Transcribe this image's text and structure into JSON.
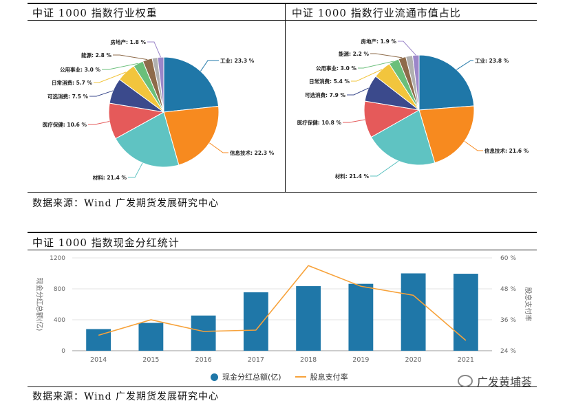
{
  "pie_left": {
    "title": "中证 1000 指数行业权重"
  },
  "pie_right": {
    "title": "中证 1000 指数行业流通市值占比"
  },
  "source_top": "数据来源：Wind  广发期货发展研究中心",
  "bar_chart": {
    "title": "中证 1000 指数现金分红统计",
    "legend_bar": "现金分红总额(亿)",
    "legend_line": "股息支付率"
  },
  "source_bottom": "数据来源：Wind  广发期货发展研究中心",
  "watermark": "广发黄埔荟",
  "colors": {
    "工业": "#1f77a8",
    "信息技术": "#f78a1f",
    "材料": "#5fc3c2",
    "医疗保健": "#e55a5a",
    "可选消费": "#3b4a8c",
    "日常消费": "#f2c53d",
    "公用事业": "#6abf7a",
    "能源": "#8e6b4a",
    "房地产": "#9b86c9",
    "other": "#b0b0b0",
    "bar": "#1f77a8",
    "line": "#f7a23a"
  },
  "chart_data": [
    {
      "type": "pie",
      "title": "中证 1000 指数行业权重",
      "slices": [
        {
          "label": "工业",
          "value": 23.3,
          "text": "工业: 23.3 %"
        },
        {
          "label": "信息技术",
          "value": 22.3,
          "text": "信息技术: 22.3 %"
        },
        {
          "label": "材料",
          "value": 21.4,
          "text": "材料: 21.4 %"
        },
        {
          "label": "医疗保健",
          "value": 10.6,
          "text": "医疗保健: 10.6 %"
        },
        {
          "label": "可选消费",
          "value": 7.5,
          "text": "可选消费: 7.5 %"
        },
        {
          "label": "日常消费",
          "value": 5.7,
          "text": "日常消费: 5.7 %"
        },
        {
          "label": "公用事业",
          "value": 3.0,
          "text": "公用事业: 3.0 %"
        },
        {
          "label": "能源",
          "value": 2.8,
          "text": "能源: 2.8 %"
        },
        {
          "label": "other",
          "value": 1.6,
          "text": ""
        },
        {
          "label": "房地产",
          "value": 1.8,
          "text": "房地产: 1.8 %"
        }
      ]
    },
    {
      "type": "pie",
      "title": "中证 1000 指数行业流通市值占比",
      "slices": [
        {
          "label": "工业",
          "value": 23.8,
          "text": "工业: 23.8 %"
        },
        {
          "label": "信息技术",
          "value": 21.6,
          "text": "信息技术: 21.6 %"
        },
        {
          "label": "材料",
          "value": 21.4,
          "text": "材料: 21.4 %"
        },
        {
          "label": "医疗保健",
          "value": 10.8,
          "text": "医疗保健: 10.8 %"
        },
        {
          "label": "可选消费",
          "value": 7.9,
          "text": "可选消费: 7.9 %"
        },
        {
          "label": "日常消费",
          "value": 5.4,
          "text": "日常消费: 5.4 %"
        },
        {
          "label": "公用事业",
          "value": 3.0,
          "text": "公用事业: 3.0 %"
        },
        {
          "label": "能源",
          "value": 2.2,
          "text": "能源: 2.2 %"
        },
        {
          "label": "other",
          "value": 2.0,
          "text": ""
        },
        {
          "label": "房地产",
          "value": 1.9,
          "text": "房地产: 1.9 %"
        }
      ]
    },
    {
      "type": "bar",
      "title": "中证 1000 指数现金分红统计",
      "categories": [
        "2014",
        "2015",
        "2016",
        "2017",
        "2018",
        "2019",
        "2020",
        "2021"
      ],
      "series": [
        {
          "name": "现金分红总额(亿)",
          "type": "bar",
          "axis": "left",
          "values": [
            280,
            360,
            455,
            755,
            835,
            865,
            1000,
            995
          ]
        },
        {
          "name": "股息支付率",
          "type": "line",
          "axis": "right",
          "values": [
            30.0,
            36.0,
            31.5,
            32.0,
            57.0,
            49.0,
            45.5,
            28.0
          ]
        }
      ],
      "ylabel_left": "现金分红总额(亿)",
      "ylabel_right": "股息支付率",
      "ylim_left": [
        0,
        1200
      ],
      "yticks_left": [
        "0",
        "400",
        "800",
        "1200"
      ],
      "ylim_right": [
        24,
        60
      ],
      "yticks_right": [
        "24 %",
        "36 %",
        "48 %",
        "60 %"
      ],
      "grid": true
    }
  ]
}
